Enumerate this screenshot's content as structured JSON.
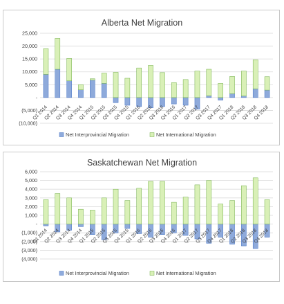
{
  "chart_data": [
    {
      "type": "bar",
      "stacked": true,
      "title": "Alberta Net Migration",
      "categories": [
        "Q1 2014",
        "Q2 2014",
        "Q3 2014",
        "Q4 2014",
        "Q1 2015",
        "Q2 2015",
        "Q3 2015",
        "Q4 2015",
        "Q1 2016",
        "Q2 2016",
        "Q3 2016",
        "Q4 2016",
        "Q1 2017",
        "Q2 2017",
        "Q3 2017",
        "Q4 2017",
        "Q1 2018",
        "Q2 2018",
        "Q3 2018",
        "Q4 2018"
      ],
      "series": [
        {
          "name": "Net Interprovincial Migration",
          "color": "#8eaadb",
          "values": [
            9000,
            11000,
            6500,
            3000,
            6800,
            5500,
            -2000,
            -3000,
            -3500,
            -4000,
            -3500,
            -2500,
            -3000,
            -4500,
            700,
            -1000,
            1500,
            600,
            3400,
            2900
          ]
        },
        {
          "name": "Net International Migration",
          "color": "#d9f0b7",
          "values": [
            10000,
            12000,
            8700,
            2000,
            500,
            4000,
            9800,
            7500,
            11500,
            12500,
            9700,
            5800,
            7000,
            10300,
            10300,
            5500,
            6700,
            9700,
            11300,
            5200
          ]
        }
      ],
      "yticks": [
        "25,000",
        "20,000",
        "15,000",
        "10,000",
        "5,000",
        "-",
        "(5,000)",
        "(10,000)"
      ],
      "ylim": [
        -10000,
        25000
      ],
      "grid": true,
      "legend_position": "bottom"
    },
    {
      "type": "bar",
      "stacked": true,
      "title": "Saskatchewan  Net Migration",
      "categories": [
        "Q1 2014",
        "Q2 2014",
        "Q3 2014",
        "Q4 2014",
        "Q1 2015",
        "Q2 2015",
        "Q3 2015",
        "Q4 2015",
        "Q1 2016",
        "Q2 2016",
        "Q3 2016",
        "Q4 2016",
        "Q1 2017",
        "Q2 2017",
        "Q3 2017",
        "Q4 2017",
        "Q1 2018",
        "Q2 2018",
        "Q3 2018",
        "Q4 2018"
      ],
      "series": [
        {
          "name": "Net Interprovincial Migration",
          "color": "#8eaadb",
          "values": [
            -200,
            -900,
            -700,
            -300,
            -1200,
            -1800,
            -1000,
            -500,
            -1100,
            -1500,
            -1200,
            -1000,
            -1300,
            -1700,
            -2200,
            -1500,
            -2300,
            -2500,
            -2800,
            -1500
          ]
        },
        {
          "name": "Net International Migration",
          "color": "#d9f0b7",
          "values": [
            2800,
            3500,
            3000,
            1700,
            1600,
            3000,
            4000,
            2700,
            4100,
            4900,
            4900,
            2500,
            3100,
            4500,
            5000,
            2300,
            2700,
            4400,
            5300,
            2800
          ]
        }
      ],
      "yticks": [
        "6,000",
        "5,000",
        "4,000",
        "3,000",
        "2,000",
        "1,000",
        "-",
        "(1,000)",
        "(2,000)",
        "(3,000)",
        "(4,000)"
      ],
      "ylim": [
        -4000,
        6000
      ],
      "grid": true,
      "legend_position": "bottom"
    }
  ]
}
